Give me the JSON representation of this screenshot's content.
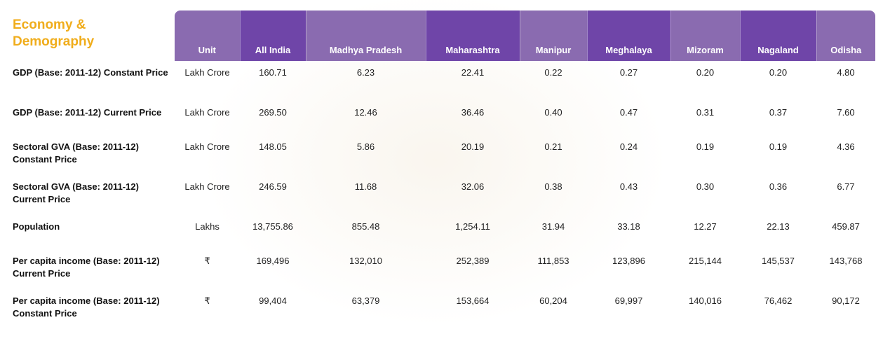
{
  "title": "Economy & Demography",
  "columns": [
    "Unit",
    "All India",
    "Madhya Pradesh",
    "Maharashtra",
    "Manipur",
    "Meghalaya",
    "Mizoram",
    "Nagaland",
    "Odisha"
  ],
  "rows": [
    {
      "label": "GDP (Base: 2011-12) Constant Price",
      "cells": [
        "Lakh Crore",
        "160.71",
        "6.23",
        "22.41",
        "0.22",
        "0.27",
        "0.20",
        "0.20",
        "4.80"
      ]
    },
    {
      "label": "GDP (Base: 2011-12) Current Price",
      "cells": [
        "Lakh Crore",
        "269.50",
        "12.46",
        "36.46",
        "0.40",
        "0.47",
        "0.31",
        "0.37",
        "7.60"
      ]
    },
    {
      "label": "Sectoral GVA (Base: 2011-12) Constant Price",
      "cells": [
        "Lakh Crore",
        "148.05",
        "5.86",
        "20.19",
        "0.21",
        "0.24",
        "0.19",
        "0.19",
        "4.36"
      ]
    },
    {
      "label": "Sectoral GVA (Base: 2011-12) Current Price",
      "cells": [
        "Lakh Crore",
        "246.59",
        "11.68",
        "32.06",
        "0.38",
        "0.43",
        "0.30",
        "0.36",
        "6.77"
      ]
    },
    {
      "label": "Population",
      "cells": [
        "Lakhs",
        "13,755.86",
        "855.48",
        "1,254.11",
        "31.94",
        "33.18",
        "12.27",
        "22.13",
        "459.87"
      ]
    },
    {
      "label": "Per capita income (Base: 2011-12) Current Price",
      "cells": [
        "₹",
        "169,496",
        "132,010",
        "252,389",
        "111,853",
        "123,896",
        "215,144",
        "145,537",
        "143,768"
      ]
    },
    {
      "label": "Per capita income (Base: 2011-12) Constant Price",
      "cells": [
        "₹",
        "99,404",
        "63,379",
        "153,664",
        "60,204",
        "69,997",
        "140,016",
        "76,462",
        "90,172"
      ]
    }
  ],
  "colors": {
    "title": "#f0ad1c",
    "header_light": "#8a6bb0",
    "header_dark": "#6f45a8"
  }
}
